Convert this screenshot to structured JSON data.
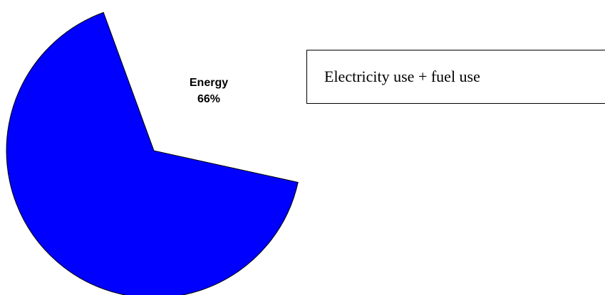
{
  "chart_data": {
    "type": "pie",
    "slices": [
      {
        "category": "Energy",
        "percent_label": "66%",
        "value": 66,
        "color": "#0000ff"
      }
    ],
    "annotation": "Electricity use + fuel use"
  }
}
